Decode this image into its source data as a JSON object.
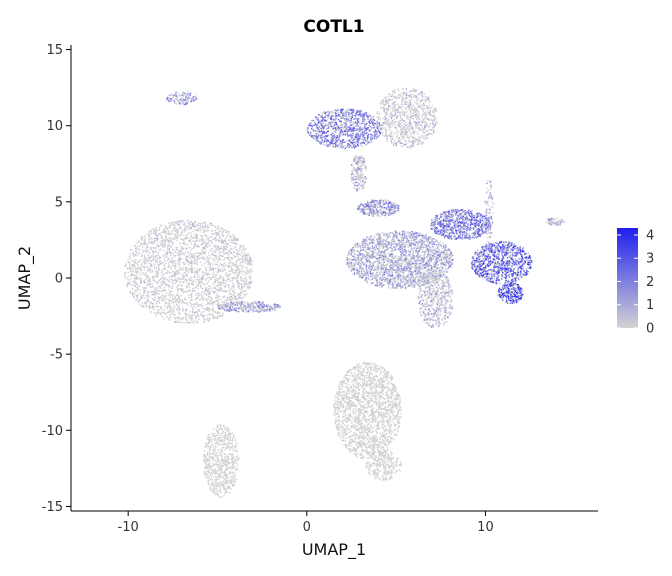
{
  "chart_data": {
    "type": "scatter",
    "title": "COTL1",
    "xlabel": "UMAP_1",
    "ylabel": "UMAP_2",
    "xlim": [
      -13.2,
      16.3
    ],
    "ylim": [
      -15.3,
      15.3
    ],
    "x_ticks": [
      -10,
      0,
      10
    ],
    "x_tick_labels": [
      "-10",
      "0",
      "10"
    ],
    "y_ticks": [
      -15,
      -10,
      -5,
      0,
      5,
      10,
      15
    ],
    "y_tick_labels": [
      "-15",
      "-10",
      "-5",
      "0",
      "5",
      "10",
      "15"
    ],
    "grid": false,
    "legend": {
      "position": "right",
      "ticks": [
        0,
        1,
        2,
        3,
        4
      ],
      "tick_labels": [
        "0",
        "1",
        "2",
        "3",
        "4"
      ],
      "low_color": "#d3d3d3",
      "high_color": "#1f1fee",
      "max": 4.3
    },
    "clusters": [
      {
        "cx": -6.6,
        "cy": 0.4,
        "rx": 3.6,
        "ry": 3.4,
        "n": 2600,
        "expr": 0.7
      },
      {
        "cx": -3.2,
        "cy": -1.9,
        "rx": 1.8,
        "ry": 0.35,
        "n": 300,
        "expr": 1.8
      },
      {
        "cx": -7.0,
        "cy": 11.8,
        "rx": 0.9,
        "ry": 0.45,
        "n": 110,
        "expr": 1.9
      },
      {
        "cx": 2.1,
        "cy": 9.8,
        "rx": 2.1,
        "ry": 1.3,
        "n": 900,
        "expr": 2.4
      },
      {
        "cx": 5.6,
        "cy": 10.5,
        "rx": 1.7,
        "ry": 2.0,
        "n": 800,
        "expr": 1.0
      },
      {
        "cx": 2.9,
        "cy": 6.9,
        "rx": 0.45,
        "ry": 1.2,
        "n": 200,
        "expr": 1.4
      },
      {
        "cx": 4.0,
        "cy": 4.6,
        "rx": 1.2,
        "ry": 0.55,
        "n": 300,
        "expr": 2.0
      },
      {
        "cx": 5.2,
        "cy": 1.2,
        "rx": 3.0,
        "ry": 1.9,
        "n": 2200,
        "expr": 1.6
      },
      {
        "cx": 7.2,
        "cy": -1.4,
        "rx": 1.0,
        "ry": 1.9,
        "n": 500,
        "expr": 1.3
      },
      {
        "cx": 8.6,
        "cy": 3.5,
        "rx": 1.7,
        "ry": 1.0,
        "n": 700,
        "expr": 2.5
      },
      {
        "cx": 10.9,
        "cy": 1.0,
        "rx": 1.7,
        "ry": 1.4,
        "n": 900,
        "expr": 3.0
      },
      {
        "cx": 11.4,
        "cy": -1.0,
        "rx": 0.7,
        "ry": 0.7,
        "n": 250,
        "expr": 3.4
      },
      {
        "cx": 10.2,
        "cy": 4.3,
        "rx": 0.25,
        "ry": 2.2,
        "n": 90,
        "expr": 1.5
      },
      {
        "cx": 13.9,
        "cy": 3.7,
        "rx": 0.55,
        "ry": 0.25,
        "n": 70,
        "expr": 1.4
      },
      {
        "cx": 3.4,
        "cy": -8.7,
        "rx": 1.9,
        "ry": 3.2,
        "n": 1700,
        "expr": 0.35
      },
      {
        "cx": 4.3,
        "cy": -12.3,
        "rx": 1.0,
        "ry": 1.0,
        "n": 250,
        "expr": 0.35
      },
      {
        "cx": -4.8,
        "cy": -12.0,
        "rx": 1.0,
        "ry": 2.4,
        "n": 650,
        "expr": 0.3
      }
    ]
  }
}
